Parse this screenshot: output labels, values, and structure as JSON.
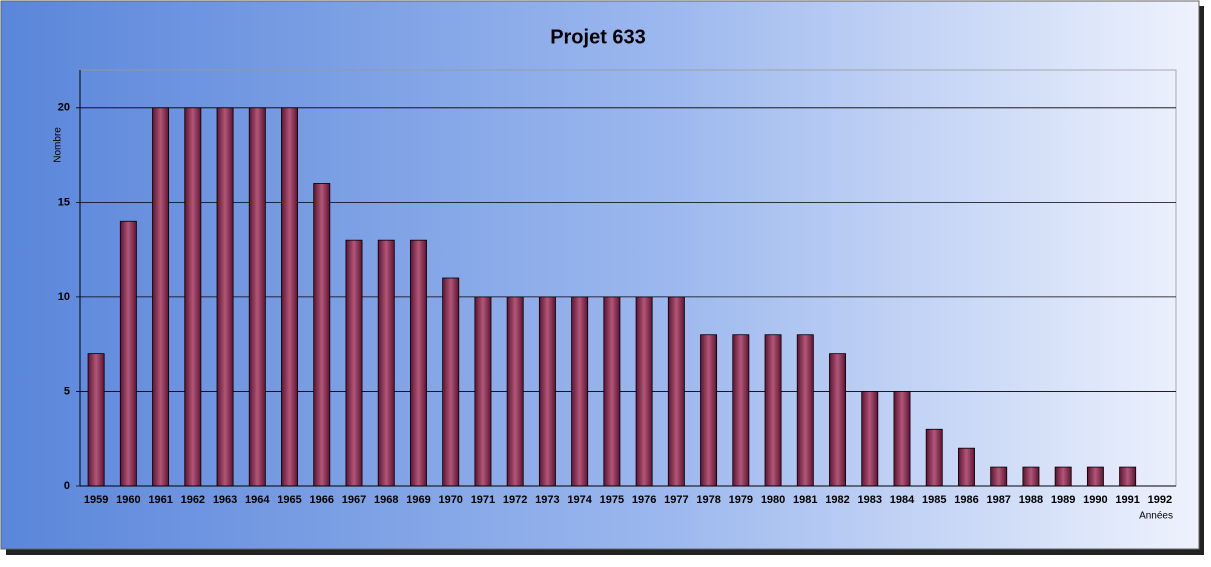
{
  "chart_data": {
    "type": "bar",
    "title": "Projet 633",
    "y_label": "Nombre",
    "x_label": "Années",
    "categories": [
      "1959",
      "1960",
      "1961",
      "1962",
      "1963",
      "1964",
      "1965",
      "1966",
      "1967",
      "1968",
      "1969",
      "1970",
      "1971",
      "1972",
      "1973",
      "1974",
      "1975",
      "1976",
      "1977",
      "1978",
      "1979",
      "1980",
      "1981",
      "1982",
      "1983",
      "1984",
      "1985",
      "1986",
      "1987",
      "1988",
      "1989",
      "1990",
      "1991",
      "1992"
    ],
    "values": [
      7,
      14,
      20,
      20,
      20,
      20,
      20,
      16,
      13,
      13,
      13,
      11,
      10,
      10,
      10,
      10,
      10,
      10,
      10,
      8,
      8,
      8,
      8,
      7,
      5,
      5,
      3,
      2,
      1,
      1,
      1,
      1,
      1,
      0
    ],
    "color": "#8c2a4e",
    "ylim": [
      0,
      22
    ],
    "yticks": [
      0,
      5,
      10,
      15,
      20
    ],
    "grid": true
  }
}
